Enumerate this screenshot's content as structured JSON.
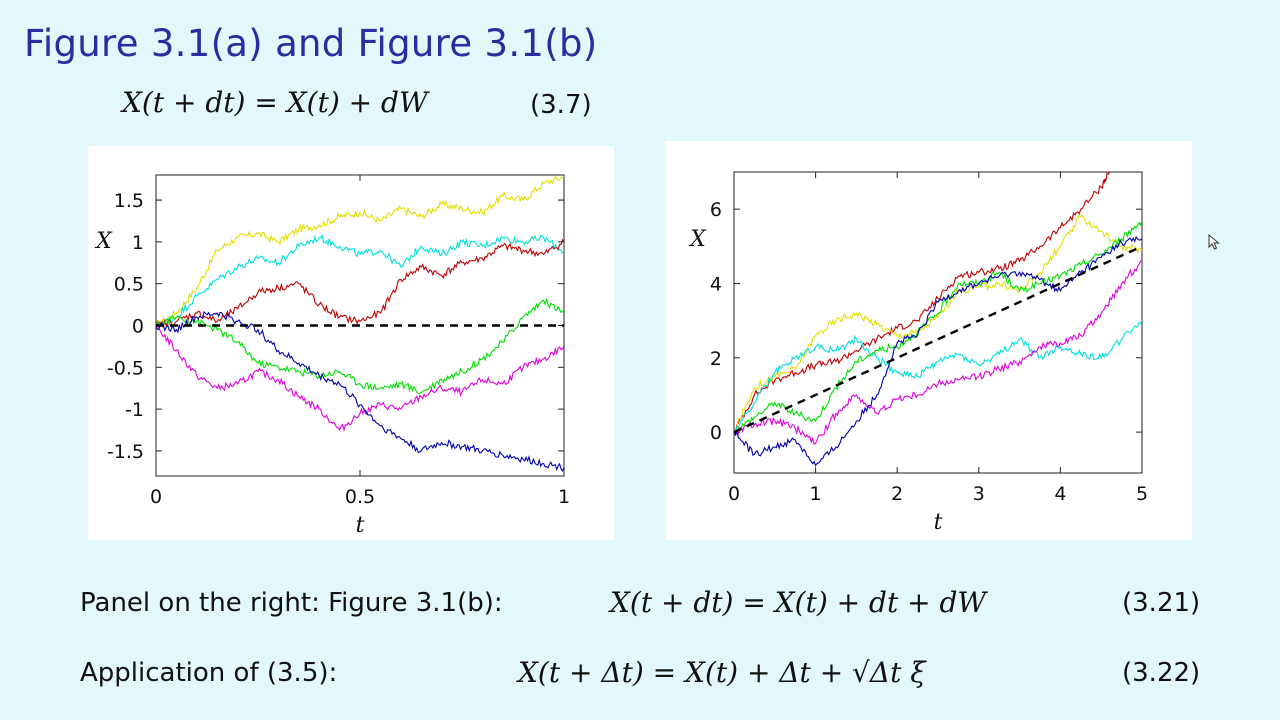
{
  "slide": {
    "title": "Figure 3.1(a) and Figure 3.1(b)",
    "eq37": {
      "lhs": "X(t + dt) = X(t) + dW",
      "number": "(3.7)"
    },
    "row1": {
      "label": "Panel on the right: Figure 3.1(b):",
      "eq": "X(t + dt) = X(t) + dt + dW",
      "number": "(3.21)"
    },
    "row2": {
      "label": "Application of (3.5):",
      "eq": "X(t + Δt) = X(t) + Δt + √Δt ξ",
      "number": "(3.22)"
    }
  },
  "chart_data": [
    {
      "type": "line",
      "title": "",
      "xlabel": "t",
      "ylabel": "X",
      "xlim": [
        0,
        1
      ],
      "ylim": [
        -1.8,
        1.8
      ],
      "xticks": [
        0,
        0.5,
        1
      ],
      "xtick_labels": [
        "0",
        "0.5",
        "1"
      ],
      "yticks": [
        1.5,
        1,
        0.5,
        0,
        -0.5,
        -1,
        -1.5
      ],
      "ytick_labels": [
        "1.5",
        "1",
        "0.5",
        "0",
        "-0.5",
        "-1",
        "-1.5"
      ],
      "grid": false,
      "reference_line": {
        "style": "dashed",
        "color": "#000000",
        "x": [
          0,
          1
        ],
        "y": [
          0,
          0
        ]
      },
      "series": [
        {
          "color": "#e0e000",
          "x": [
            0,
            0.05,
            0.1,
            0.15,
            0.2,
            0.25,
            0.3,
            0.35,
            0.4,
            0.45,
            0.5,
            0.55,
            0.6,
            0.65,
            0.7,
            0.75,
            0.8,
            0.85,
            0.9,
            0.95,
            1
          ],
          "y": [
            0,
            0.15,
            0.45,
            0.9,
            1.05,
            1.1,
            1.0,
            1.15,
            1.2,
            1.3,
            1.35,
            1.25,
            1.4,
            1.3,
            1.45,
            1.4,
            1.35,
            1.55,
            1.5,
            1.7,
            1.78
          ]
        },
        {
          "color": "#00e0e0",
          "x": [
            0,
            0.05,
            0.1,
            0.15,
            0.2,
            0.25,
            0.3,
            0.35,
            0.4,
            0.45,
            0.5,
            0.55,
            0.6,
            0.65,
            0.7,
            0.75,
            0.8,
            0.85,
            0.9,
            0.95,
            1
          ],
          "y": [
            0,
            0.1,
            0.35,
            0.55,
            0.7,
            0.8,
            0.75,
            0.95,
            1.05,
            0.95,
            0.85,
            0.9,
            0.7,
            0.95,
            0.85,
            1.0,
            0.95,
            1.05,
            1.0,
            1.05,
            0.88
          ]
        },
        {
          "color": "#c00000",
          "x": [
            0,
            0.05,
            0.1,
            0.15,
            0.2,
            0.25,
            0.3,
            0.35,
            0.4,
            0.45,
            0.5,
            0.55,
            0.6,
            0.65,
            0.7,
            0.75,
            0.8,
            0.85,
            0.9,
            0.95,
            1
          ],
          "y": [
            0,
            0.05,
            0.15,
            0.05,
            0.2,
            0.4,
            0.45,
            0.5,
            0.25,
            0.1,
            0.05,
            0.15,
            0.55,
            0.7,
            0.6,
            0.75,
            0.8,
            0.95,
            0.9,
            0.85,
            1.0
          ]
        },
        {
          "color": "#00e000",
          "x": [
            0,
            0.05,
            0.1,
            0.15,
            0.2,
            0.25,
            0.3,
            0.35,
            0.4,
            0.45,
            0.5,
            0.55,
            0.6,
            0.65,
            0.7,
            0.75,
            0.8,
            0.85,
            0.9,
            0.95,
            1
          ],
          "y": [
            0,
            0.1,
            0.05,
            -0.05,
            -0.2,
            -0.45,
            -0.5,
            -0.55,
            -0.6,
            -0.55,
            -0.7,
            -0.75,
            -0.7,
            -0.8,
            -0.65,
            -0.55,
            -0.4,
            -0.2,
            0.1,
            0.3,
            0.15
          ]
        },
        {
          "color": "#e000e0",
          "x": [
            0,
            0.05,
            0.1,
            0.15,
            0.2,
            0.25,
            0.3,
            0.35,
            0.4,
            0.45,
            0.5,
            0.55,
            0.6,
            0.65,
            0.7,
            0.75,
            0.8,
            0.85,
            0.9,
            0.95,
            1
          ],
          "y": [
            0,
            -0.3,
            -0.6,
            -0.75,
            -0.7,
            -0.55,
            -0.65,
            -0.85,
            -1.0,
            -1.25,
            -1.05,
            -0.95,
            -1.0,
            -0.85,
            -0.75,
            -0.8,
            -0.65,
            -0.7,
            -0.5,
            -0.4,
            -0.25
          ]
        },
        {
          "color": "#0000b0",
          "x": [
            0,
            0.05,
            0.1,
            0.15,
            0.2,
            0.25,
            0.3,
            0.35,
            0.4,
            0.45,
            0.5,
            0.55,
            0.6,
            0.65,
            0.7,
            0.75,
            0.8,
            0.85,
            0.9,
            0.95,
            1
          ],
          "y": [
            0,
            -0.05,
            0.1,
            0.15,
            0.05,
            -0.05,
            -0.3,
            -0.45,
            -0.6,
            -0.7,
            -0.95,
            -1.2,
            -1.35,
            -1.5,
            -1.4,
            -1.45,
            -1.5,
            -1.55,
            -1.6,
            -1.65,
            -1.7
          ]
        }
      ]
    },
    {
      "type": "line",
      "title": "",
      "xlabel": "t",
      "ylabel": "X",
      "xlim": [
        0,
        5
      ],
      "ylim": [
        -1.1,
        7
      ],
      "xticks": [
        0,
        1,
        2,
        3,
        4,
        5
      ],
      "xtick_labels": [
        "0",
        "1",
        "2",
        "3",
        "4",
        "5"
      ],
      "yticks": [
        6,
        4,
        2,
        0
      ],
      "ytick_labels": [
        "6",
        "4",
        "2",
        "0"
      ],
      "grid": false,
      "reference_line": {
        "style": "dashed",
        "color": "#000000",
        "x": [
          0,
          5
        ],
        "y": [
          0,
          5
        ]
      },
      "series": [
        {
          "color": "#c00000",
          "x": [
            0,
            0.25,
            0.5,
            0.75,
            1,
            1.25,
            1.5,
            1.75,
            2,
            2.25,
            2.5,
            2.75,
            3,
            3.25,
            3.5,
            3.75,
            4,
            4.25,
            4.5,
            4.6
          ],
          "y": [
            0,
            1.0,
            1.4,
            1.6,
            1.8,
            1.9,
            2.2,
            2.5,
            2.8,
            3.0,
            3.6,
            4.2,
            4.3,
            4.4,
            4.6,
            5.0,
            5.5,
            6.0,
            6.6,
            7.0
          ]
        },
        {
          "color": "#e0e000",
          "x": [
            0,
            0.25,
            0.5,
            0.75,
            1,
            1.25,
            1.5,
            1.75,
            2,
            2.25,
            2.5,
            2.75,
            3,
            3.25,
            3.5,
            3.75,
            4,
            4.25,
            4.5,
            4.75,
            5
          ],
          "y": [
            0,
            1.2,
            1.5,
            1.7,
            2.6,
            3.0,
            3.2,
            2.9,
            2.6,
            2.7,
            3.1,
            3.8,
            3.9,
            4.0,
            3.8,
            4.3,
            5.0,
            5.8,
            5.4,
            5.0,
            4.9
          ]
        },
        {
          "color": "#00e0e0",
          "x": [
            0,
            0.25,
            0.5,
            0.75,
            1,
            1.25,
            1.5,
            1.75,
            2,
            2.25,
            2.5,
            2.75,
            3,
            3.25,
            3.5,
            3.75,
            4,
            4.25,
            4.5,
            4.75,
            5
          ],
          "y": [
            0,
            0.8,
            1.6,
            2.0,
            2.3,
            2.2,
            2.5,
            2.0,
            1.6,
            1.5,
            1.9,
            2.1,
            1.8,
            2.1,
            2.5,
            2.0,
            2.3,
            2.1,
            2.0,
            2.5,
            3.0
          ]
        },
        {
          "color": "#00e000",
          "x": [
            0,
            0.25,
            0.5,
            0.75,
            1,
            1.25,
            1.5,
            1.75,
            2,
            2.25,
            2.5,
            2.75,
            3,
            3.25,
            3.5,
            3.75,
            4,
            4.25,
            4.5,
            4.75,
            5
          ],
          "y": [
            0,
            0.4,
            0.8,
            0.5,
            0.3,
            1.2,
            1.9,
            2.2,
            2.3,
            2.7,
            3.2,
            4.0,
            4.0,
            4.3,
            3.8,
            4.0,
            4.2,
            4.5,
            4.8,
            5.2,
            5.7
          ]
        },
        {
          "color": "#e000e0",
          "x": [
            0,
            0.25,
            0.5,
            0.75,
            1,
            1.25,
            1.5,
            1.75,
            2,
            2.25,
            2.5,
            2.75,
            3,
            3.25,
            3.5,
            3.75,
            4,
            4.25,
            4.5,
            4.75,
            5
          ],
          "y": [
            0,
            0.2,
            0.3,
            0.1,
            -0.3,
            0.5,
            1.0,
            0.5,
            0.9,
            1.0,
            1.3,
            1.4,
            1.5,
            1.7,
            1.9,
            2.3,
            2.4,
            2.6,
            3.2,
            4.0,
            4.6
          ]
        },
        {
          "color": "#0000b0",
          "x": [
            0,
            0.25,
            0.5,
            0.75,
            1,
            1.25,
            1.5,
            1.75,
            2,
            2.25,
            2.5,
            2.75,
            3,
            3.25,
            3.5,
            3.75,
            4,
            4.25,
            4.5,
            4.75,
            5
          ],
          "y": [
            0,
            -0.6,
            -0.4,
            -0.2,
            -0.9,
            -0.4,
            0.3,
            1.0,
            2.4,
            2.6,
            3.5,
            3.8,
            4.0,
            4.2,
            4.3,
            4.1,
            3.8,
            4.3,
            4.7,
            5.1,
            5.2
          ]
        }
      ]
    }
  ]
}
